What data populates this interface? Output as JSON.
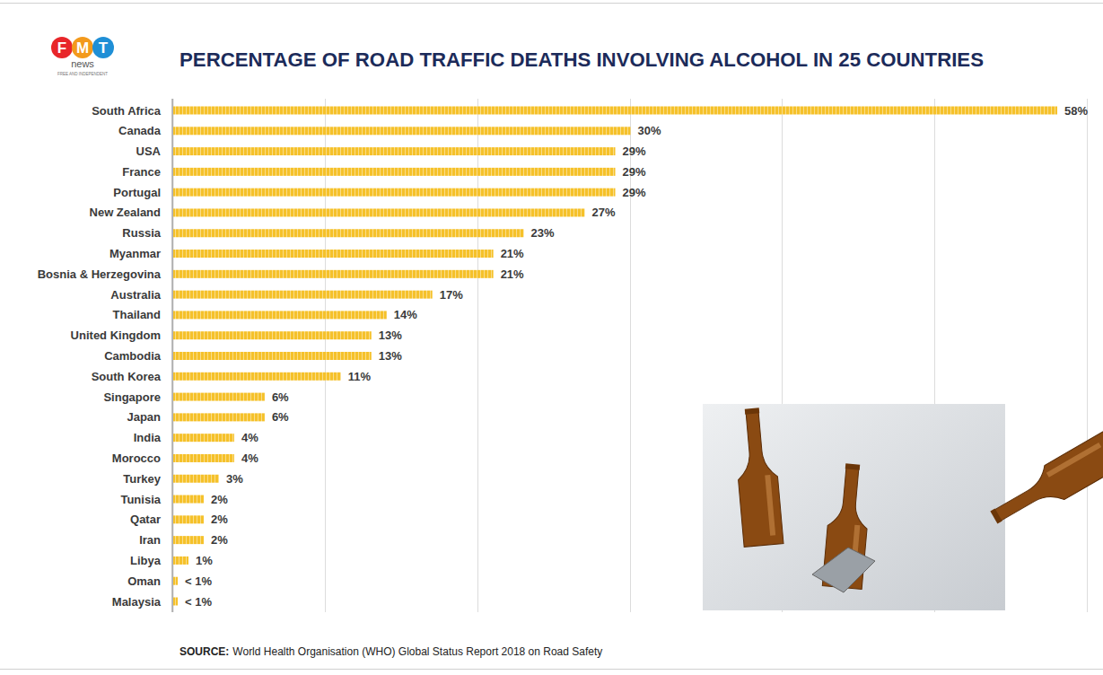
{
  "chart_data": {
    "type": "bar",
    "orientation": "horizontal",
    "title": "PERCENTAGE OF ROAD TRAFFIC DEATHS INVOLVING ALCOHOL IN 25 COUNTRIES",
    "logo_text": "FMT",
    "logo_subtext": "news",
    "logo_tagline": "FREE AND INDEPENDENT",
    "source_label": "SOURCE:",
    "source": "World Health Organisation (WHO) Global Status Report 2018 on Road Safety",
    "categories": [
      "South Africa",
      "Canada",
      "USA",
      "France",
      "Portugal",
      "New Zealand",
      "Russia",
      "Myanmar",
      "Bosnia & Herzegovina",
      "Australia",
      "Thailand",
      "United Kingdom",
      "Cambodia",
      "South Korea",
      "Singapore",
      "Japan",
      "India",
      "Morocco",
      "Turkey",
      "Tunisia",
      "Qatar",
      "Iran",
      "Libya",
      "Oman",
      "Malaysia"
    ],
    "values": [
      58,
      30,
      29,
      29,
      29,
      27,
      23,
      21,
      21,
      17,
      14,
      13,
      13,
      11,
      6,
      6,
      4,
      4,
      3,
      2,
      2,
      2,
      1,
      0.3,
      0.3
    ],
    "value_labels": [
      "58%",
      "30%",
      "29%",
      "29%",
      "29%",
      "27%",
      "23%",
      "21%",
      "21%",
      "17%",
      "14%",
      "13%",
      "13%",
      "11%",
      "6%",
      "6%",
      "4%",
      "4%",
      "3%",
      "2%",
      "2%",
      "2%",
      "1%",
      "< 1%",
      "< 1%"
    ],
    "color": "#f5c12a",
    "xlim": [
      0,
      60
    ],
    "xticks": [
      0,
      10,
      20,
      30,
      40,
      50,
      60
    ],
    "grid": true,
    "tick_labels": "y",
    "data_labels": true
  }
}
